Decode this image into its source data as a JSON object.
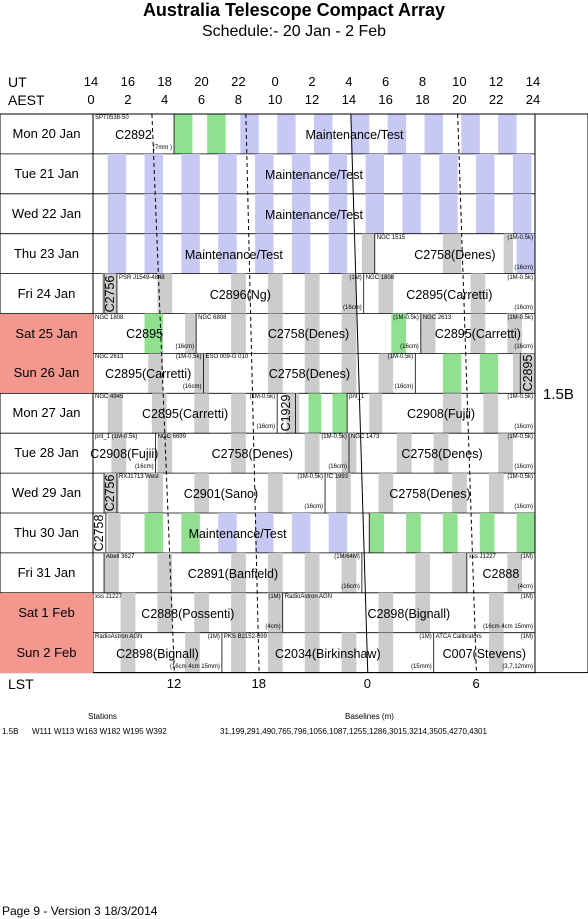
{
  "title": "Australia Telescope Compact Array",
  "subtitle": "Schedule:- 20 Jan - 2  Feb",
  "axes": {
    "ut_label": "UT",
    "aest_label": "AEST",
    "ut_ticks": [
      "14",
      "16",
      "18",
      "20",
      "22",
      "0",
      "2",
      "4",
      "6",
      "8",
      "10",
      "12",
      "14"
    ],
    "aest_ticks": [
      "0",
      "2",
      "4",
      "6",
      "8",
      "10",
      "12",
      "14",
      "16",
      "18",
      "20",
      "22",
      "24"
    ],
    "lst_label": "LST",
    "lst_ticks": [
      "12",
      "18",
      "0",
      "6"
    ]
  },
  "colors": {
    "weekend": "#f4978e",
    "maint": "#c8c8f5",
    "night": "#cccccc",
    "green": "#90e090"
  },
  "days": [
    {
      "label": "Mon   20 Jan",
      "weekend": false,
      "bg": [
        {
          "s": 4.4,
          "e": 5.4,
          "c": "green"
        },
        {
          "s": 6.2,
          "e": 7.2,
          "c": "green"
        },
        {
          "s": 8,
          "e": 9,
          "c": "maint"
        },
        {
          "s": 10,
          "e": 11,
          "c": "maint"
        },
        {
          "s": 12,
          "e": 13,
          "c": "maint"
        },
        {
          "s": 14,
          "e": 15,
          "c": "maint"
        },
        {
          "s": 16,
          "e": 17,
          "c": "maint"
        },
        {
          "s": 18,
          "e": 19,
          "c": "maint"
        },
        {
          "s": 20,
          "e": 21,
          "c": "maint"
        },
        {
          "s": 22,
          "e": 23,
          "c": "maint"
        }
      ],
      "blocks": [
        {
          "s": 0,
          "e": 4.4,
          "text": "C2892",
          "src": "SPT0538-50",
          "note": "(7mm )"
        },
        {
          "s": 4.4,
          "e": 24,
          "text": "Maintenance/Test"
        }
      ]
    },
    {
      "label": "Tue   21 Jan",
      "weekend": false,
      "bg": [
        {
          "s": 0.8,
          "e": 1.8,
          "c": "maint"
        },
        {
          "s": 2.8,
          "e": 3.8,
          "c": "maint"
        },
        {
          "s": 4.8,
          "e": 5.8,
          "c": "maint"
        },
        {
          "s": 6.8,
          "e": 7.8,
          "c": "maint"
        },
        {
          "s": 8.8,
          "e": 9.8,
          "c": "maint"
        },
        {
          "s": 10.8,
          "e": 11.8,
          "c": "maint"
        },
        {
          "s": 12.8,
          "e": 13.8,
          "c": "maint"
        },
        {
          "s": 14.8,
          "e": 15.8,
          "c": "maint"
        },
        {
          "s": 16.8,
          "e": 17.8,
          "c": "maint"
        },
        {
          "s": 18.8,
          "e": 19.8,
          "c": "maint"
        },
        {
          "s": 20.8,
          "e": 21.8,
          "c": "maint"
        },
        {
          "s": 22.8,
          "e": 23.8,
          "c": "maint"
        }
      ],
      "blocks": [
        {
          "s": 0,
          "e": 24,
          "text": "Maintenance/Test"
        }
      ]
    },
    {
      "label": "Wed   22 Jan",
      "weekend": false,
      "bg": [
        {
          "s": 0.8,
          "e": 1.8,
          "c": "maint"
        },
        {
          "s": 2.8,
          "e": 3.8,
          "c": "maint"
        },
        {
          "s": 4.8,
          "e": 5.8,
          "c": "maint"
        },
        {
          "s": 6.8,
          "e": 7.8,
          "c": "maint"
        },
        {
          "s": 8.8,
          "e": 9.8,
          "c": "maint"
        },
        {
          "s": 10.8,
          "e": 11.8,
          "c": "maint"
        },
        {
          "s": 12.8,
          "e": 13.8,
          "c": "maint"
        },
        {
          "s": 14.8,
          "e": 15.8,
          "c": "maint"
        },
        {
          "s": 16.8,
          "e": 17.8,
          "c": "maint"
        },
        {
          "s": 18.8,
          "e": 19.8,
          "c": "maint"
        },
        {
          "s": 20.8,
          "e": 21.8,
          "c": "maint"
        },
        {
          "s": 22.8,
          "e": 23.8,
          "c": "maint"
        }
      ],
      "blocks": [
        {
          "s": 0,
          "e": 24,
          "text": "Maintenance/Test"
        }
      ]
    },
    {
      "label": "Thu   23 Jan",
      "weekend": false,
      "bg": [
        {
          "s": 0.8,
          "e": 1.8,
          "c": "maint"
        },
        {
          "s": 2.8,
          "e": 3.8,
          "c": "maint"
        },
        {
          "s": 4.8,
          "e": 5.8,
          "c": "maint"
        },
        {
          "s": 6.8,
          "e": 7.8,
          "c": "maint"
        },
        {
          "s": 8.8,
          "e": 9.8,
          "c": "maint"
        },
        {
          "s": 10.8,
          "e": 11.8,
          "c": "maint"
        },
        {
          "s": 12.8,
          "e": 13.8,
          "c": "maint"
        },
        {
          "s": 14.6,
          "e": 15.3,
          "c": "night"
        },
        {
          "s": 19,
          "e": 20,
          "c": "night"
        },
        {
          "s": 22.3,
          "e": 22.8,
          "c": "night"
        },
        {
          "s": 23,
          "e": 24,
          "c": "maint"
        }
      ],
      "blocks": [
        {
          "s": 0,
          "e": 15.3,
          "text": "Maintenance/Test"
        },
        {
          "s": 15.3,
          "e": 24,
          "text": "C2758(Denes)",
          "src": "NGC 1515",
          "cfg": "(1M-0.5k)",
          "note": "(16cm)"
        }
      ]
    },
    {
      "label": "Fri   24 Jan",
      "weekend": false,
      "bg": [
        {
          "s": 0.5,
          "e": 1.3,
          "c": "night"
        },
        {
          "s": 3.5,
          "e": 4.3,
          "c": "night"
        },
        {
          "s": 7.5,
          "e": 8.3,
          "c": "night"
        },
        {
          "s": 9.5,
          "e": 10.3,
          "c": "night"
        },
        {
          "s": 11.5,
          "e": 12.3,
          "c": "night"
        },
        {
          "s": 13.5,
          "e": 14.3,
          "c": "night"
        },
        {
          "s": 15.5,
          "e": 16.3,
          "c": "night"
        },
        {
          "s": 20.5,
          "e": 21.3,
          "c": "night"
        }
      ],
      "blocks": [
        {
          "s": 0.6,
          "e": 1.3,
          "text": "C2756",
          "vertical": true
        },
        {
          "s": 1.3,
          "e": 14.7,
          "text": "C2896(Ng)",
          "src": "PSR J1549-4848",
          "cfg": "(1M)",
          "note": "(16cm)"
        },
        {
          "s": 14.7,
          "e": 24,
          "text": "C2895(Carretti)",
          "src": "NGC 1808",
          "cfg": "(1M-0.5k)",
          "note": "(16cm)"
        }
      ]
    },
    {
      "label": "Sat   25 Jan",
      "weekend": true,
      "bg": [
        {
          "s": 2.8,
          "e": 3.8,
          "c": "green"
        },
        {
          "s": 5.0,
          "e": 5.6,
          "c": "night"
        },
        {
          "s": 7.5,
          "e": 8.3,
          "c": "night"
        },
        {
          "s": 9.5,
          "e": 10.3,
          "c": "night"
        },
        {
          "s": 11.5,
          "e": 12.3,
          "c": "night"
        },
        {
          "s": 13.5,
          "e": 14.3,
          "c": "night"
        },
        {
          "s": 16.2,
          "e": 17.0,
          "c": "green"
        },
        {
          "s": 17.8,
          "e": 18.6,
          "c": "night"
        },
        {
          "s": 20.5,
          "e": 21.3,
          "c": "night"
        },
        {
          "s": 22.5,
          "e": 23.3,
          "c": "night"
        }
      ],
      "blocks": [
        {
          "s": 0,
          "e": 5.6,
          "text": "C2895",
          "src": "NGC 1808",
          "note": "(16cm)"
        },
        {
          "s": 5.6,
          "e": 17.8,
          "text": "C2758(Denes)",
          "src": "NGC 6808",
          "cfg": "(1M-0.5k)",
          "note": "(16cm)"
        },
        {
          "s": 17.8,
          "e": 24,
          "text": "C2895(Carretti)",
          "src": "NGC 2613",
          "cfg": "(1M-0.5k)",
          "note": "(16cm)"
        }
      ]
    },
    {
      "label": "Sun   26 Jan",
      "weekend": true,
      "bg": [
        {
          "s": 3.0,
          "e": 3.8,
          "c": "night"
        },
        {
          "s": 5.5,
          "e": 6.3,
          "c": "night"
        },
        {
          "s": 9.5,
          "e": 10.3,
          "c": "night"
        },
        {
          "s": 11.5,
          "e": 12.3,
          "c": "night"
        },
        {
          "s": 13.5,
          "e": 14.3,
          "c": "night"
        },
        {
          "s": 15.5,
          "e": 16.3,
          "c": "night"
        },
        {
          "s": 19,
          "e": 20,
          "c": "green"
        },
        {
          "s": 21,
          "e": 22,
          "c": "green"
        },
        {
          "s": 22.8,
          "e": 24,
          "c": "night"
        }
      ],
      "blocks": [
        {
          "s": 0,
          "e": 6,
          "text": "C2895(Carretti)",
          "src": "NGC 2613",
          "cfg": "(1M-0.5k)",
          "note": "(16cm)"
        },
        {
          "s": 6,
          "e": 17.5,
          "text": "C2758(Denes)",
          "src": "ESO 009-G 010",
          "cfg": "(1M-0.5k)",
          "note": "(16cm)"
        },
        {
          "s": 17.5,
          "e": 23.2,
          "text": ""
        },
        {
          "s": 23.2,
          "e": 24,
          "text": "C2895",
          "vertical": true
        }
      ]
    },
    {
      "label": "Mon   27 Jan",
      "weekend": false,
      "bg": [
        {
          "s": 0.8,
          "e": 1.6,
          "c": "night"
        },
        {
          "s": 3.2,
          "e": 4.0,
          "c": "night"
        },
        {
          "s": 5.5,
          "e": 6.3,
          "c": "night"
        },
        {
          "s": 7.5,
          "e": 8.3,
          "c": "night"
        },
        {
          "s": 10.5,
          "e": 11.2,
          "c": "night"
        },
        {
          "s": 11.7,
          "e": 12.4,
          "c": "green"
        },
        {
          "s": 13.0,
          "e": 13.8,
          "c": "green"
        },
        {
          "s": 15.0,
          "e": 15.7,
          "c": "night"
        },
        {
          "s": 19,
          "e": 20,
          "c": "night"
        },
        {
          "s": 21.2,
          "e": 22,
          "c": "night"
        }
      ],
      "blocks": [
        {
          "s": 0,
          "e": 10,
          "text": "C2895(Carretti)",
          "src": "NGC 4945",
          "cfg": "(1M-0.5k)",
          "note": "(16cm)"
        },
        {
          "s": 10,
          "e": 11,
          "text": "C1929",
          "vertical": true
        },
        {
          "s": 11,
          "e": 13.8,
          "text": ""
        },
        {
          "s": 13.8,
          "e": 24,
          "text": "C2908(Fujii)",
          "src": "pnt_1",
          "cfg": "(1M-0.5k)",
          "note": "(16cm)"
        }
      ]
    },
    {
      "label": "Tue   28 Jan",
      "weekend": false,
      "bg": [
        {
          "s": 1.0,
          "e": 1.8,
          "c": "night"
        },
        {
          "s": 3.5,
          "e": 4.3,
          "c": "night"
        },
        {
          "s": 7.5,
          "e": 8.3,
          "c": "night"
        },
        {
          "s": 11.5,
          "e": 12.3,
          "c": "night"
        },
        {
          "s": 13.5,
          "e": 14.3,
          "c": "night"
        },
        {
          "s": 16.5,
          "e": 17.3,
          "c": "night"
        },
        {
          "s": 18.5,
          "e": 19.3,
          "c": "night"
        },
        {
          "s": 22.0,
          "e": 22.8,
          "c": "night"
        }
      ],
      "blocks": [
        {
          "s": 0,
          "e": 3.4,
          "text": "C2908(Fujii)",
          "src": "pnt_1 (1M-0.5k)",
          "note": "(16cm)"
        },
        {
          "s": 3.4,
          "e": 13.9,
          "text": "C2758(Denes)",
          "src": "NGC 6699",
          "cfg": "(1M-0.5k)",
          "note": "(16cm)"
        },
        {
          "s": 13.9,
          "e": 24,
          "text": "C2758(Denes)",
          "src": "NGC 1473",
          "cfg": "(1M-0.5k)",
          "note": "(16cm)"
        }
      ]
    },
    {
      "label": "Wed   29 Jan",
      "weekend": false,
      "bg": [
        {
          "s": 0.6,
          "e": 1.4,
          "c": "night"
        },
        {
          "s": 3.0,
          "e": 3.8,
          "c": "night"
        },
        {
          "s": 5.5,
          "e": 6.3,
          "c": "night"
        },
        {
          "s": 9.5,
          "e": 10.3,
          "c": "night"
        },
        {
          "s": 13.2,
          "e": 14.0,
          "c": "night"
        },
        {
          "s": 15.5,
          "e": 16.3,
          "c": "night"
        },
        {
          "s": 19.5,
          "e": 20.3,
          "c": "night"
        },
        {
          "s": 21.5,
          "e": 22.3,
          "c": "night"
        }
      ],
      "blocks": [
        {
          "s": 0.6,
          "e": 1.3,
          "text": "C2756",
          "vertical": true
        },
        {
          "s": 1.3,
          "e": 12.6,
          "text": "C2901(Sano)",
          "src": "RXJ1713 West",
          "cfg": "(1M-0.5k)",
          "note": "(16cm)"
        },
        {
          "s": 12.6,
          "e": 24,
          "text": "C2758(Denes)",
          "src": "IC 1993",
          "cfg": "(1M-0.5k)",
          "note": "(16cm)"
        }
      ]
    },
    {
      "label": "Thu   30 Jan",
      "weekend": false,
      "bg": [
        {
          "s": 0.8,
          "e": 1.5,
          "c": "night"
        },
        {
          "s": 2.8,
          "e": 3.8,
          "c": "green"
        },
        {
          "s": 4.8,
          "e": 5.8,
          "c": "green"
        },
        {
          "s": 6.8,
          "e": 7.8,
          "c": "maint"
        },
        {
          "s": 8.8,
          "e": 9.8,
          "c": "maint"
        },
        {
          "s": 10.8,
          "e": 11.8,
          "c": "maint"
        },
        {
          "s": 12.8,
          "e": 13.8,
          "c": "maint"
        },
        {
          "s": 15.0,
          "e": 15.8,
          "c": "green"
        },
        {
          "s": 17.0,
          "e": 17.8,
          "c": "green"
        },
        {
          "s": 19.0,
          "e": 19.8,
          "c": "green"
        },
        {
          "s": 21.0,
          "e": 21.8,
          "c": "green"
        },
        {
          "s": 23.0,
          "e": 24,
          "c": "green"
        }
      ],
      "blocks": [
        {
          "s": 0,
          "e": 0.7,
          "text": "C2758",
          "vertical": true
        },
        {
          "s": 0.7,
          "e": 15,
          "text": "Maintenance/Test"
        },
        {
          "s": 15,
          "e": 24,
          "text": ""
        }
      ]
    },
    {
      "label": "Fri   31 Jan",
      "weekend": false,
      "bg": [
        {
          "s": 0.6,
          "e": 1.4,
          "c": "night"
        },
        {
          "s": 3.5,
          "e": 4.3,
          "c": "night"
        },
        {
          "s": 7.5,
          "e": 8.3,
          "c": "night"
        },
        {
          "s": 9.5,
          "e": 10.3,
          "c": "night"
        },
        {
          "s": 11.5,
          "e": 12.3,
          "c": "night"
        },
        {
          "s": 13.5,
          "e": 14.3,
          "c": "night"
        },
        {
          "s": 17.5,
          "e": 18.3,
          "c": "night"
        },
        {
          "s": 19.5,
          "e": 20.3,
          "c": "night"
        },
        {
          "s": 22.5,
          "e": 23.3,
          "c": "night"
        }
      ],
      "blocks": [
        {
          "s": 0.6,
          "e": 14.6,
          "text": "C2891(Banfield)",
          "src": "Abell 3627",
          "cfg": "(1M/64M)",
          "note": "(16cm)"
        },
        {
          "s": 14.6,
          "e": 20.3,
          "text": ""
        },
        {
          "s": 20.3,
          "e": 24,
          "text": "C2888",
          "src": "xss J1227",
          "cfg": "(1M)",
          "note": "(4cm)"
        }
      ]
    },
    {
      "label": "Sat    1 Feb",
      "weekend": true,
      "bg": [
        {
          "s": 1.5,
          "e": 2.3,
          "c": "night"
        },
        {
          "s": 3.5,
          "e": 4.3,
          "c": "night"
        },
        {
          "s": 5.5,
          "e": 6.3,
          "c": "night"
        },
        {
          "s": 7.5,
          "e": 8.3,
          "c": "night"
        },
        {
          "s": 9.5,
          "e": 10.3,
          "c": "night"
        },
        {
          "s": 11.5,
          "e": 12.3,
          "c": "night"
        },
        {
          "s": 15.5,
          "e": 16.3,
          "c": "night"
        },
        {
          "s": 17.5,
          "e": 18.3,
          "c": "night"
        },
        {
          "s": 21.5,
          "e": 22.3,
          "c": "night"
        }
      ],
      "blocks": [
        {
          "s": 0,
          "e": 10.3,
          "text": "C2888(Possenti)",
          "src": "xss J1227",
          "cfg": "(1M)",
          "note": "(4cm)"
        },
        {
          "s": 10.3,
          "e": 24,
          "text": "C2898(Bignall)",
          "src": "RadioAstron AGN",
          "cfg": "(1M)",
          "note": "(16cm 4cm 15mm)"
        }
      ]
    },
    {
      "label": "Sun    2 Feb",
      "weekend": true,
      "bg": [
        {
          "s": 1.5,
          "e": 2.3,
          "c": "night"
        },
        {
          "s": 5.0,
          "e": 5.8,
          "c": "night"
        },
        {
          "s": 7.5,
          "e": 8.3,
          "c": "night"
        },
        {
          "s": 9.5,
          "e": 10.3,
          "c": "night"
        },
        {
          "s": 11.5,
          "e": 12.3,
          "c": "night"
        },
        {
          "s": 13.5,
          "e": 14.3,
          "c": "night"
        },
        {
          "s": 15.5,
          "e": 16.3,
          "c": "night"
        },
        {
          "s": 21.5,
          "e": 22.3,
          "c": "night"
        }
      ],
      "blocks": [
        {
          "s": 0,
          "e": 7,
          "text": "C2898(Bignall)",
          "src": "RadioAstron AGN",
          "cfg": "(1M)",
          "note": "(16cm 4cm 15mm)"
        },
        {
          "s": 7,
          "e": 18.5,
          "text": "C2034(Birkinshaw)",
          "src": "PKS B2152-699",
          "cfg": "(1M)",
          "note": "(15mm)"
        },
        {
          "s": 18.5,
          "e": 24,
          "text": "C007(Stevens)",
          "src": "ATCA Calibrators",
          "cfg": "(1M)",
          "note": "(3,7,12mm)"
        }
      ]
    }
  ],
  "config": "1.5B",
  "footer": {
    "stations_label": "Stations",
    "baselines_label": "Baselines (m)",
    "config_name": "1.5B",
    "stations": "W111 W113 W163 W182 W195 W392",
    "baselines": "31,199,291,490,765,796,1056,1087,1255,1286,3015,3214,3505,4270,4301",
    "page_note": "Page 9 - Version 3  18/3/2014"
  }
}
